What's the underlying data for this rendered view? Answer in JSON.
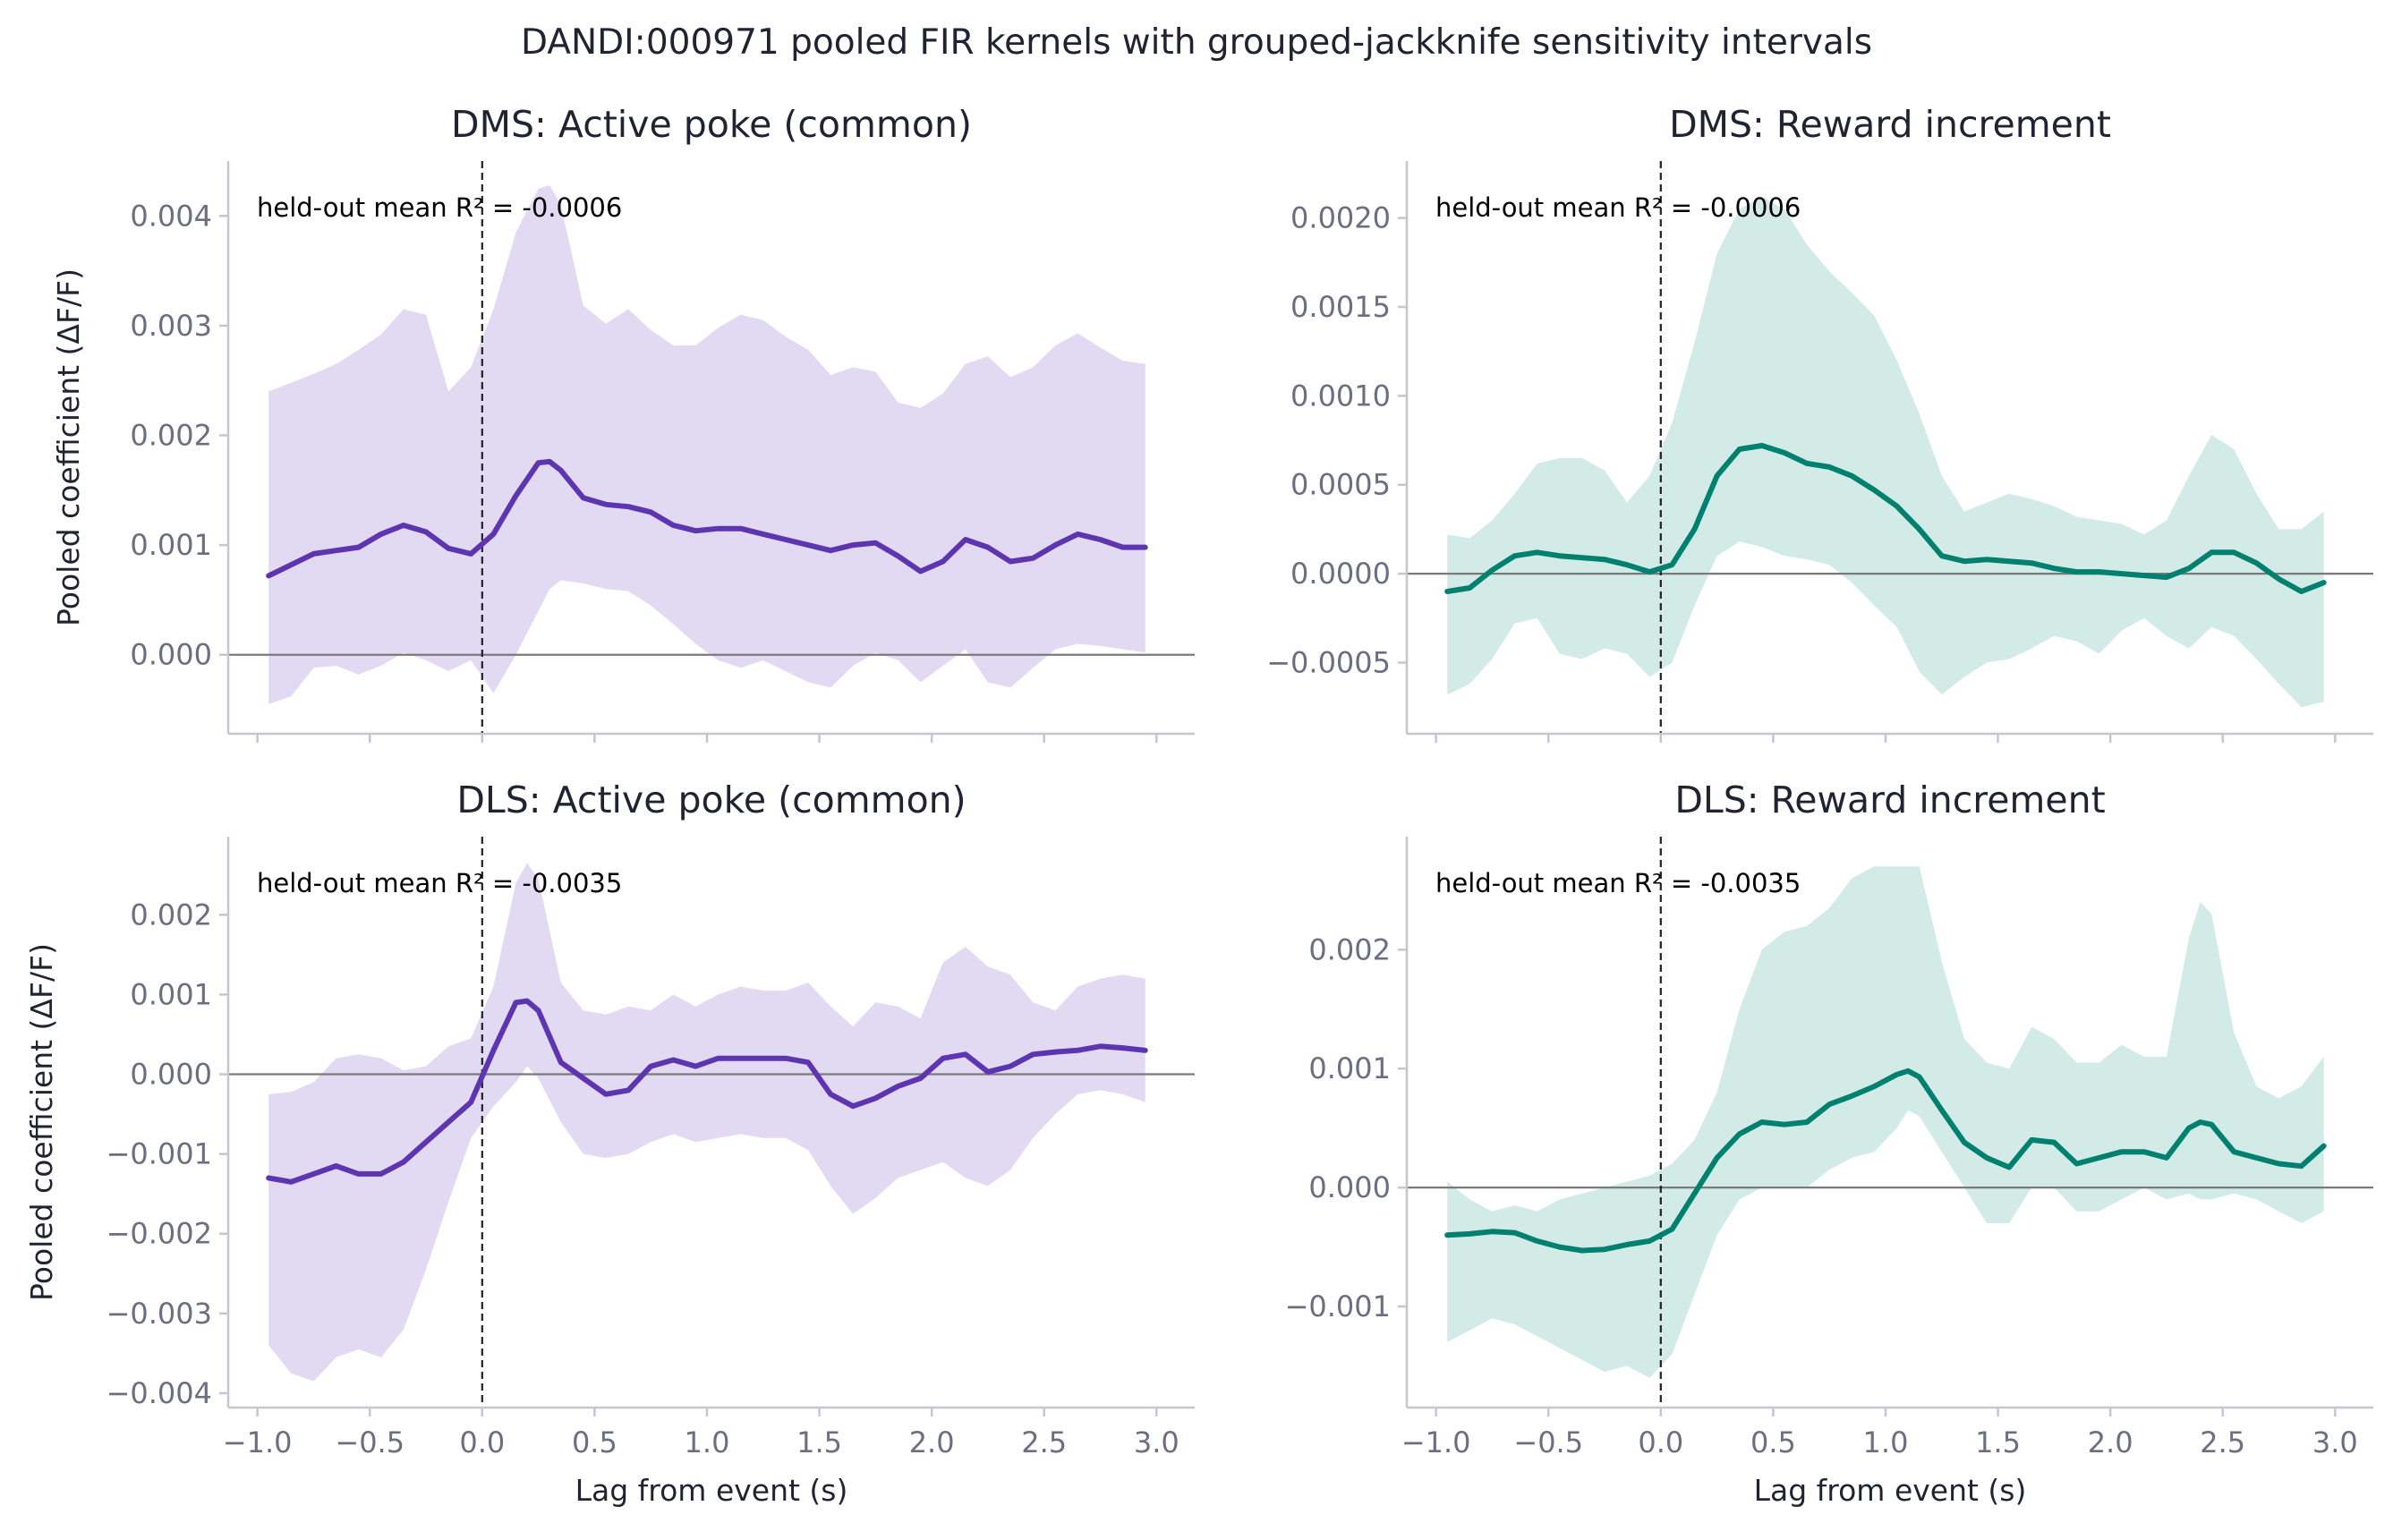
{
  "figure": {
    "title": "DANDI:000971 pooled FIR kernels with grouped-jackknife sensitivity intervals"
  },
  "colors": {
    "purple_line": "#5e35b1",
    "purple_band": "#e2daf2",
    "teal_line": "#00806f",
    "teal_band": "#d2ebe6",
    "axis": "#c4c6d0",
    "zero_line": "#7a7a7a",
    "event_line": "#222222"
  },
  "chart_data": [
    {
      "type": "line",
      "title": "DMS: Active poke (common)",
      "xlabel": "",
      "ylabel": "Pooled coefficient (ΔF/F)",
      "xlim": [
        -1.13,
        3.17
      ],
      "ylim": [
        -0.00072,
        0.0045
      ],
      "xticks": [
        -1.0,
        -0.5,
        0.0,
        0.5,
        1.0,
        1.5,
        2.0,
        2.5,
        3.0
      ],
      "xtick_labels": [],
      "yticks": [
        0.0,
        0.001,
        0.002,
        0.003,
        0.004
      ],
      "ytick_labels": [
        "0.000",
        "0.001",
        "0.002",
        "0.003",
        "0.004"
      ],
      "annotation": "held-out mean R² = -0.0006",
      "color": "purple",
      "x": [
        -0.95,
        -0.85,
        -0.75,
        -0.65,
        -0.55,
        -0.45,
        -0.35,
        -0.25,
        -0.15,
        -0.05,
        0.05,
        0.15,
        0.25,
        0.3,
        0.35,
        0.45,
        0.55,
        0.65,
        0.75,
        0.85,
        0.95,
        1.05,
        1.15,
        1.25,
        1.35,
        1.45,
        1.55,
        1.65,
        1.75,
        1.85,
        1.95,
        2.05,
        2.15,
        2.25,
        2.35,
        2.45,
        2.55,
        2.65,
        2.75,
        2.85,
        2.95
      ],
      "mean": [
        0.00072,
        0.00082,
        0.00092,
        0.00095,
        0.00098,
        0.0011,
        0.00118,
        0.00112,
        0.00097,
        0.00092,
        0.0011,
        0.00145,
        0.00175,
        0.00176,
        0.00168,
        0.00143,
        0.00137,
        0.00135,
        0.0013,
        0.00118,
        0.00113,
        0.00115,
        0.00115,
        0.0011,
        0.00105,
        0.001,
        0.00095,
        0.001,
        0.00102,
        0.0009,
        0.00076,
        0.00085,
        0.00105,
        0.00098,
        0.00085,
        0.00088,
        0.001,
        0.0011,
        0.00105,
        0.00098,
        0.00098
      ],
      "upper": [
        0.0024,
        0.00248,
        0.00256,
        0.00265,
        0.00278,
        0.00292,
        0.00315,
        0.0031,
        0.0024,
        0.00262,
        0.00315,
        0.00385,
        0.00425,
        0.00428,
        0.0041,
        0.00318,
        0.00302,
        0.00315,
        0.00296,
        0.00282,
        0.00282,
        0.00298,
        0.0031,
        0.00305,
        0.0029,
        0.00278,
        0.00255,
        0.00262,
        0.00258,
        0.0023,
        0.00225,
        0.00238,
        0.00265,
        0.00272,
        0.00253,
        0.00262,
        0.00282,
        0.00293,
        0.0028,
        0.00268,
        0.00265
      ],
      "lower": [
        -0.00045,
        -0.00038,
        -0.00012,
        -0.0001,
        -0.00018,
        -0.0001,
        2e-05,
        -5e-05,
        -0.00015,
        -5e-05,
        -0.00035,
        0.0,
        0.0004,
        0.0006,
        0.00068,
        0.00065,
        0.0006,
        0.00058,
        0.00045,
        0.00028,
        0.0001,
        -5e-05,
        -0.00012,
        -5e-05,
        -0.00015,
        -0.00025,
        -0.0003,
        -0.0001,
        2e-05,
        -5e-05,
        -0.00025,
        -0.0001,
        5e-05,
        -0.00025,
        -0.0003,
        -0.00012,
        5e-05,
        0.0001,
        8e-05,
        5e-05,
        2e-05
      ]
    },
    {
      "type": "line",
      "title": "DMS: Reward increment",
      "xlabel": "",
      "ylabel": "",
      "xlim": [
        -1.13,
        3.17
      ],
      "ylim": [
        -0.0009,
        0.00232
      ],
      "xticks": [
        -1.0,
        -0.5,
        0.0,
        0.5,
        1.0,
        1.5,
        2.0,
        2.5,
        3.0
      ],
      "xtick_labels": [],
      "yticks": [
        -0.0005,
        0.0,
        0.0005,
        0.001,
        0.0015,
        0.002
      ],
      "ytick_labels": [
        "−0.0005",
        "0.0000",
        "0.0005",
        "0.0010",
        "0.0015",
        "0.0020"
      ],
      "annotation": "held-out mean R² = -0.0006",
      "color": "teal",
      "x": [
        -0.95,
        -0.85,
        -0.75,
        -0.65,
        -0.55,
        -0.45,
        -0.35,
        -0.25,
        -0.15,
        -0.05,
        0.05,
        0.15,
        0.25,
        0.35,
        0.45,
        0.55,
        0.65,
        0.75,
        0.85,
        0.95,
        1.05,
        1.15,
        1.25,
        1.35,
        1.45,
        1.55,
        1.65,
        1.75,
        1.85,
        1.95,
        2.05,
        2.15,
        2.25,
        2.35,
        2.45,
        2.55,
        2.65,
        2.75,
        2.85,
        2.95
      ],
      "mean": [
        -0.0001,
        -8e-05,
        2e-05,
        0.0001,
        0.00012,
        0.0001,
        9e-05,
        8e-05,
        5e-05,
        1e-05,
        5e-05,
        0.00025,
        0.00055,
        0.0007,
        0.00072,
        0.00068,
        0.00062,
        0.0006,
        0.00055,
        0.00047,
        0.00038,
        0.00025,
        0.0001,
        7e-05,
        8e-05,
        7e-05,
        6e-05,
        3e-05,
        1e-05,
        1e-05,
        0.0,
        -1e-05,
        -2e-05,
        3e-05,
        0.00012,
        0.00012,
        6e-05,
        -3e-05,
        -0.0001,
        -5e-05
      ],
      "upper": [
        0.00022,
        0.0002,
        0.0003,
        0.00045,
        0.00062,
        0.00065,
        0.00065,
        0.00058,
        0.0004,
        0.00055,
        0.00085,
        0.0013,
        0.0018,
        0.00205,
        0.00212,
        0.00205,
        0.00185,
        0.0017,
        0.00158,
        0.00145,
        0.0012,
        0.0009,
        0.00055,
        0.00035,
        0.0004,
        0.00045,
        0.00042,
        0.00038,
        0.00032,
        0.0003,
        0.00028,
        0.00022,
        0.0003,
        0.00055,
        0.00078,
        0.0007,
        0.00045,
        0.00025,
        0.00025,
        0.00035
      ],
      "lower": [
        -0.00068,
        -0.00062,
        -0.00048,
        -0.00028,
        -0.00025,
        -0.00045,
        -0.00048,
        -0.00042,
        -0.00045,
        -0.00058,
        -0.0005,
        -0.00018,
        0.0001,
        0.00018,
        0.00015,
        0.0001,
        8e-05,
        5e-05,
        -5e-05,
        -0.00018,
        -0.0003,
        -0.00055,
        -0.00068,
        -0.00058,
        -0.0005,
        -0.00048,
        -0.00042,
        -0.00035,
        -0.00038,
        -0.00045,
        -0.00032,
        -0.00025,
        -0.00035,
        -0.00042,
        -0.0003,
        -0.00035,
        -0.00048,
        -0.00062,
        -0.00075,
        -0.00072
      ]
    },
    {
      "type": "line",
      "title": "DLS: Active poke (common)",
      "xlabel": "Lag from event (s)",
      "ylabel": "Pooled coefficient (ΔF/F)",
      "xlim": [
        -1.13,
        3.17
      ],
      "ylim": [
        -0.00418,
        0.00298
      ],
      "xticks": [
        -1.0,
        -0.5,
        0.0,
        0.5,
        1.0,
        1.5,
        2.0,
        2.5,
        3.0
      ],
      "xtick_labels": [
        "−1.0",
        "−0.5",
        "0.0",
        "0.5",
        "1.0",
        "1.5",
        "2.0",
        "2.5",
        "3.0"
      ],
      "yticks": [
        -0.004,
        -0.003,
        -0.002,
        -0.001,
        0.0,
        0.001,
        0.002
      ],
      "ytick_labels": [
        "−0.004",
        "−0.003",
        "−0.002",
        "−0.001",
        "0.000",
        "0.001",
        "0.002"
      ],
      "annotation": "held-out mean R² = -0.0035",
      "color": "purple",
      "x": [
        -0.95,
        -0.85,
        -0.75,
        -0.65,
        -0.55,
        -0.45,
        -0.35,
        -0.25,
        -0.15,
        -0.05,
        0.05,
        0.15,
        0.2,
        0.25,
        0.35,
        0.45,
        0.55,
        0.65,
        0.75,
        0.85,
        0.95,
        1.05,
        1.15,
        1.25,
        1.35,
        1.45,
        1.55,
        1.65,
        1.75,
        1.85,
        1.95,
        2.05,
        2.15,
        2.25,
        2.35,
        2.45,
        2.55,
        2.65,
        2.75,
        2.85,
        2.95
      ],
      "mean": [
        -0.0013,
        -0.00135,
        -0.00125,
        -0.00115,
        -0.00125,
        -0.00125,
        -0.0011,
        -0.00085,
        -0.0006,
        -0.00035,
        0.0003,
        0.0009,
        0.00092,
        0.0008,
        0.00015,
        -5e-05,
        -0.00025,
        -0.0002,
        0.0001,
        0.00018,
        0.0001,
        0.0002,
        0.0002,
        0.0002,
        0.0002,
        0.00015,
        -0.00025,
        -0.0004,
        -0.0003,
        -0.00015,
        -5e-05,
        0.0002,
        0.00025,
        3e-05,
        0.0001,
        0.00025,
        0.00028,
        0.0003,
        0.00035,
        0.00033,
        0.0003
      ],
      "upper": [
        -0.00025,
        -0.00022,
        -0.0001,
        0.0002,
        0.00025,
        0.0002,
        5e-05,
        0.0001,
        0.00035,
        0.00045,
        0.0011,
        0.0024,
        0.00265,
        0.00245,
        0.00115,
        0.0008,
        0.00075,
        0.00085,
        0.0008,
        0.001,
        0.00085,
        0.001,
        0.0011,
        0.00105,
        0.00105,
        0.00115,
        0.00085,
        0.0006,
        0.0009,
        0.00085,
        0.0007,
        0.0014,
        0.0016,
        0.00135,
        0.00125,
        0.0009,
        0.0008,
        0.0011,
        0.0012,
        0.00125,
        0.0012
      ],
      "lower": [
        -0.0034,
        -0.00375,
        -0.00385,
        -0.00355,
        -0.00345,
        -0.00355,
        -0.0032,
        -0.00245,
        -0.0016,
        -0.0008,
        -0.0004,
        -0.0001,
        0.0001,
        -5e-05,
        -0.0006,
        -0.001,
        -0.00105,
        -0.001,
        -0.00085,
        -0.00075,
        -0.00085,
        -0.0008,
        -0.00075,
        -0.0008,
        -0.0008,
        -0.00095,
        -0.0014,
        -0.00175,
        -0.00155,
        -0.0013,
        -0.0012,
        -0.0011,
        -0.0013,
        -0.0014,
        -0.0012,
        -0.0008,
        -0.0005,
        -0.00025,
        -0.0002,
        -0.00025,
        -0.00035
      ]
    },
    {
      "type": "line",
      "title": "DLS: Reward increment",
      "xlabel": "Lag from event (s)",
      "ylabel": "",
      "xlim": [
        -1.13,
        3.17
      ],
      "ylim": [
        -0.00185,
        0.00295
      ],
      "xticks": [
        -1.0,
        -0.5,
        0.0,
        0.5,
        1.0,
        1.5,
        2.0,
        2.5,
        3.0
      ],
      "xtick_labels": [
        "−1.0",
        "−0.5",
        "0.0",
        "0.5",
        "1.0",
        "1.5",
        "2.0",
        "2.5",
        "3.0"
      ],
      "yticks": [
        -0.001,
        0.0,
        0.001,
        0.002
      ],
      "ytick_labels": [
        "−0.001",
        "0.000",
        "0.001",
        "0.002"
      ],
      "annotation": "held-out mean R² = -0.0035",
      "color": "teal",
      "x": [
        -0.95,
        -0.85,
        -0.75,
        -0.65,
        -0.55,
        -0.45,
        -0.35,
        -0.25,
        -0.15,
        -0.05,
        0.05,
        0.15,
        0.25,
        0.35,
        0.45,
        0.55,
        0.65,
        0.75,
        0.85,
        0.95,
        1.05,
        1.1,
        1.15,
        1.25,
        1.35,
        1.45,
        1.55,
        1.65,
        1.75,
        1.85,
        1.95,
        2.05,
        2.15,
        2.25,
        2.35,
        2.4,
        2.45,
        2.55,
        2.65,
        2.75,
        2.85,
        2.95
      ],
      "mean": [
        -0.0004,
        -0.00039,
        -0.00037,
        -0.00038,
        -0.00045,
        -0.0005,
        -0.00053,
        -0.00052,
        -0.00048,
        -0.00045,
        -0.00035,
        -5e-05,
        0.00025,
        0.00045,
        0.00055,
        0.00053,
        0.00055,
        0.0007,
        0.00077,
        0.00085,
        0.00095,
        0.00098,
        0.00093,
        0.00065,
        0.00038,
        0.00025,
        0.00017,
        0.0004,
        0.00038,
        0.0002,
        0.00025,
        0.0003,
        0.0003,
        0.00025,
        0.0005,
        0.00055,
        0.00053,
        0.0003,
        0.00025,
        0.0002,
        0.00018,
        0.00035
      ],
      "upper": [
        5e-05,
        -0.0001,
        -0.0002,
        -0.00015,
        -0.0002,
        -0.0001,
        -5e-05,
        0.0,
        5e-05,
        0.0001,
        0.0002,
        0.0004,
        0.0008,
        0.0015,
        0.002,
        0.00215,
        0.0022,
        0.00235,
        0.0026,
        0.0027,
        0.0027,
        0.0027,
        0.0027,
        0.0019,
        0.00125,
        0.00105,
        0.001,
        0.00135,
        0.00125,
        0.00105,
        0.00105,
        0.0012,
        0.0011,
        0.0011,
        0.0021,
        0.0024,
        0.0023,
        0.0013,
        0.00085,
        0.00075,
        0.00085,
        0.0011
      ],
      "lower": [
        -0.0013,
        -0.0012,
        -0.0011,
        -0.00115,
        -0.00125,
        -0.00135,
        -0.00145,
        -0.00155,
        -0.0015,
        -0.0016,
        -0.0014,
        -0.0009,
        -0.0004,
        -0.0001,
        0.0,
        0.0,
        0.0,
        0.00015,
        0.00025,
        0.0003,
        0.0005,
        0.00065,
        0.0006,
        0.0003,
        0.0,
        -0.0003,
        -0.0003,
        0.0,
        0.0,
        -0.0002,
        -0.0002,
        -0.0001,
        0.0,
        -0.0001,
        -5e-05,
        -0.0001,
        -0.0001,
        -5e-05,
        -0.0001,
        -0.0002,
        -0.0003,
        -0.0002
      ]
    }
  ]
}
